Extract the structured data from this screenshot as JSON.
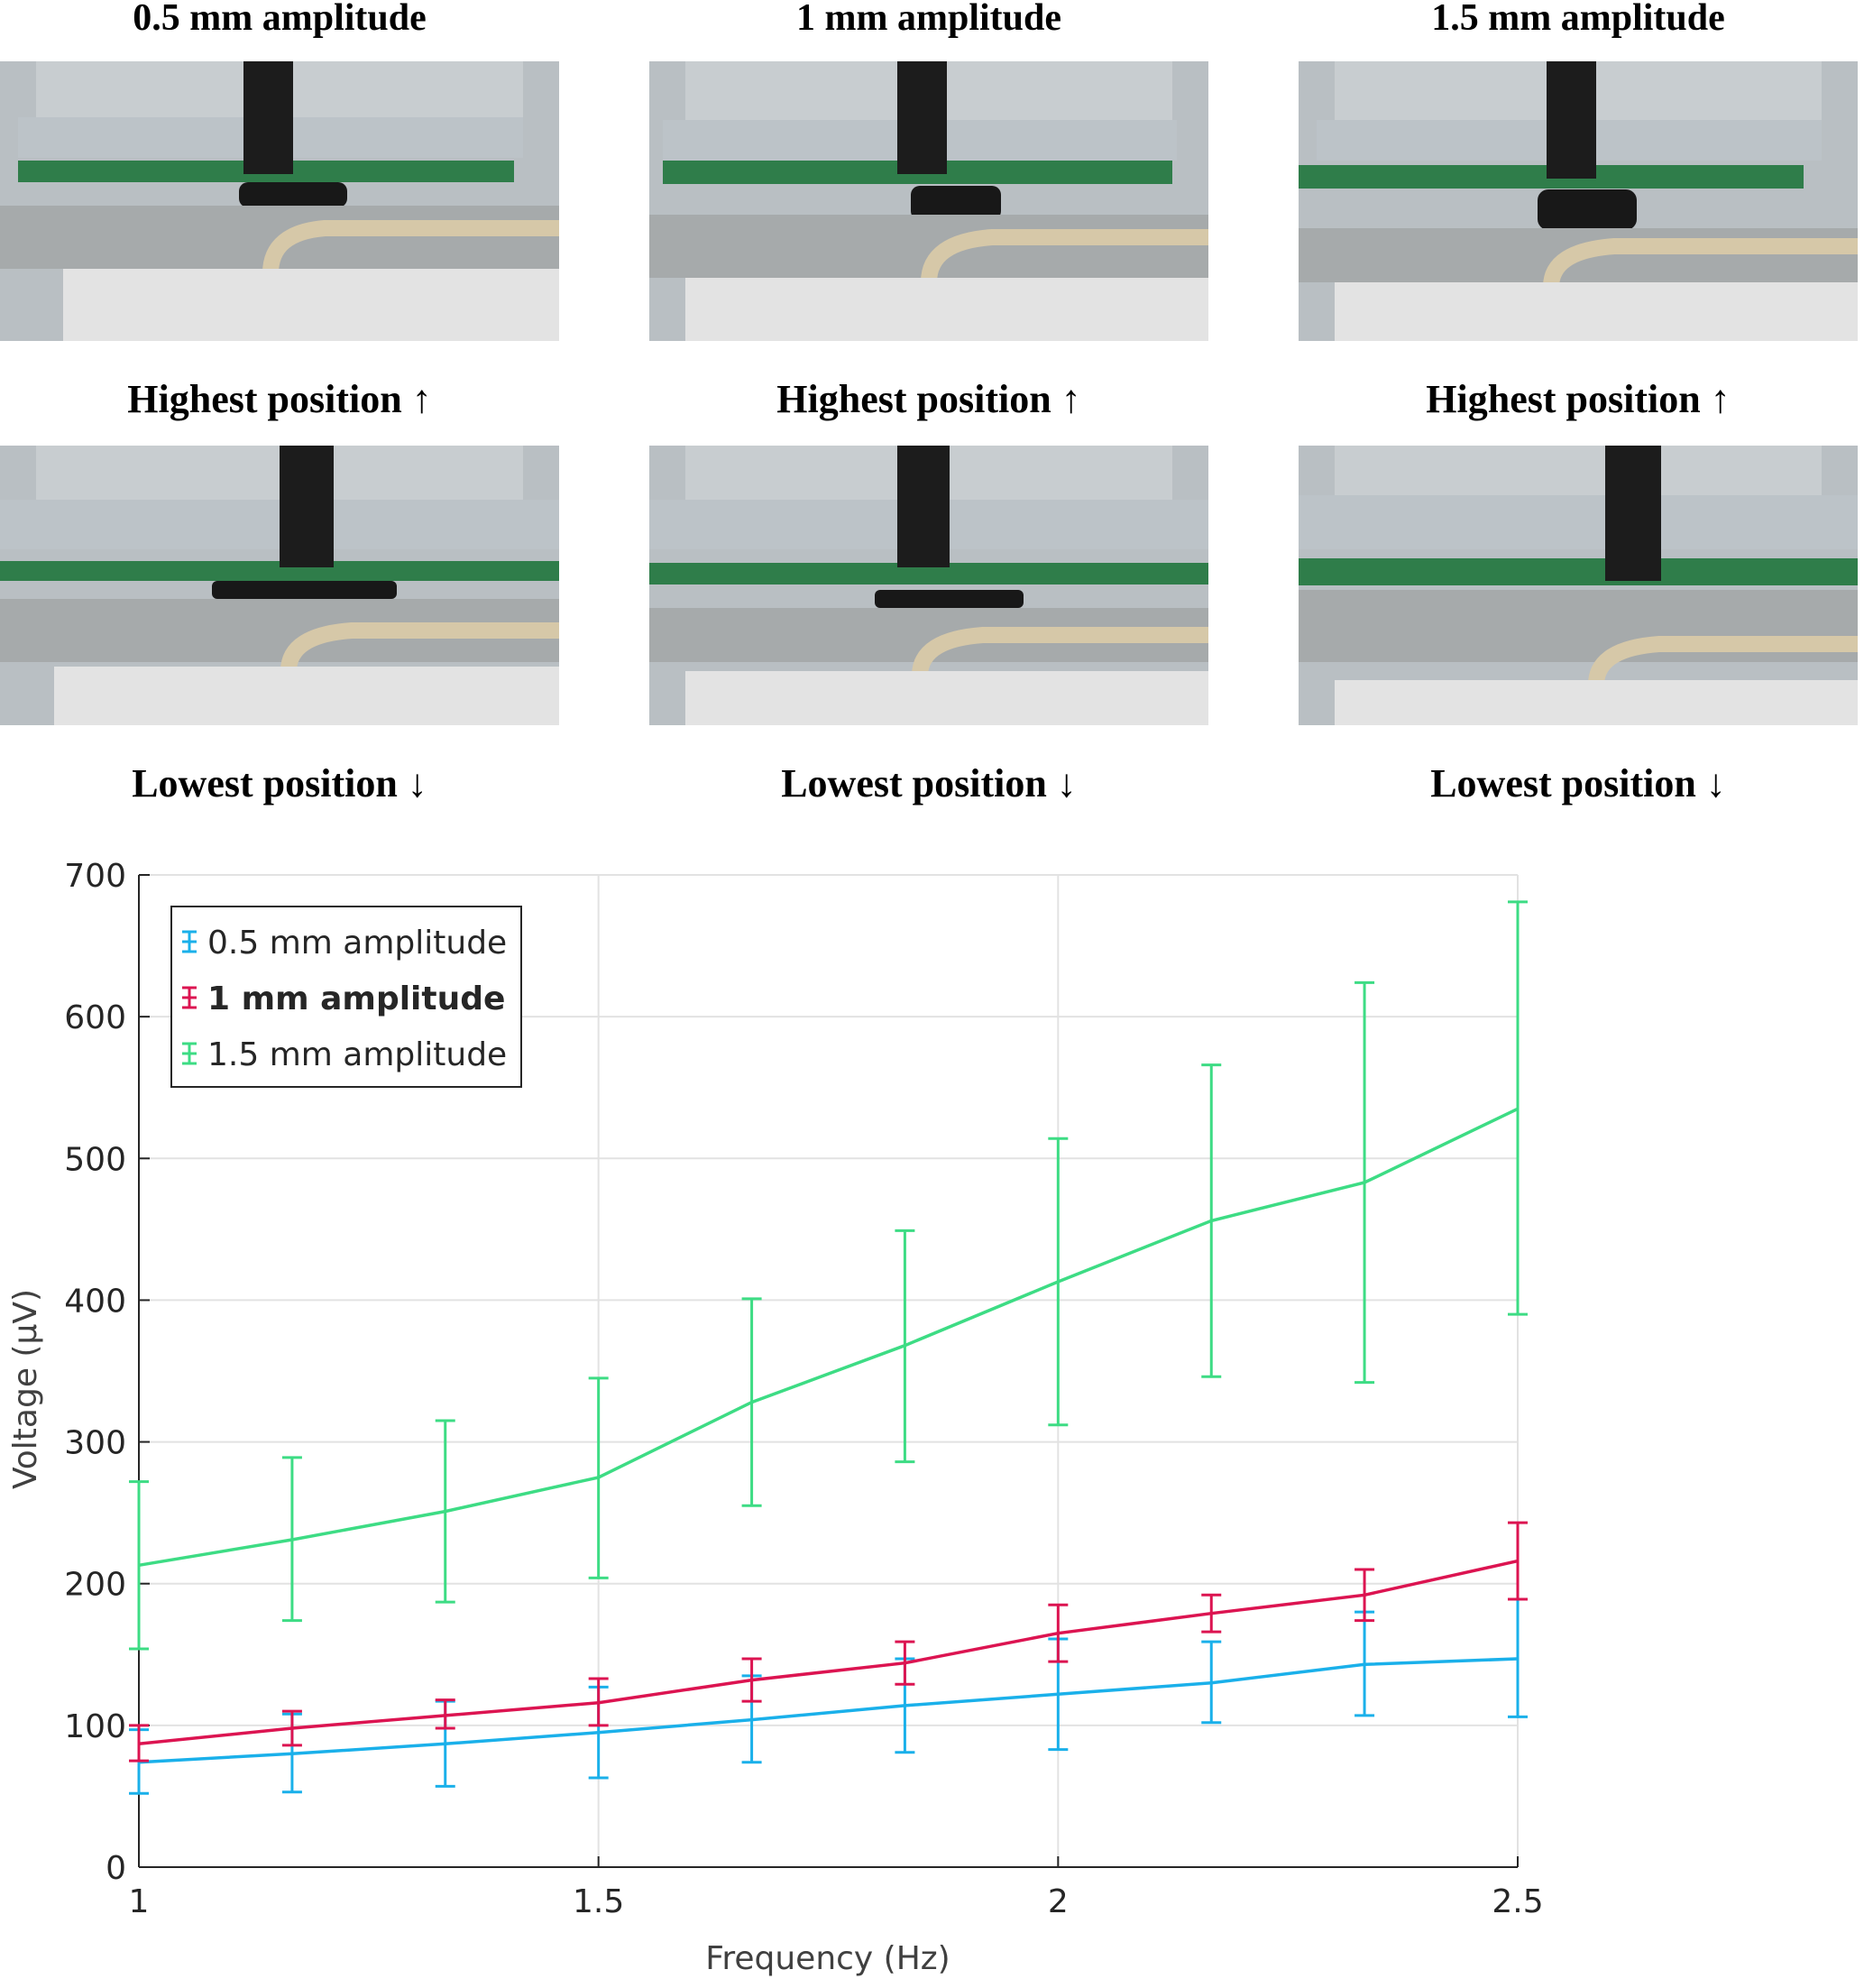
{
  "columns": [
    {
      "title": "0.5 mm amplitude",
      "highest_label": "Highest position ↑",
      "lowest_label": "Lowest position ↓"
    },
    {
      "title": "1 mm amplitude",
      "highest_label": "Highest position ↑",
      "lowest_label": "Lowest position ↓"
    },
    {
      "title": "1.5 mm amplitude",
      "highest_label": "Highest position ↑",
      "lowest_label": "Lowest position ↓"
    }
  ],
  "chart_data": {
    "type": "line",
    "title": "",
    "xlabel": "Frequency (Hz)",
    "ylabel": "Voltage (µV)",
    "xlim": [
      1,
      2.5
    ],
    "ylim": [
      0,
      700
    ],
    "x_ticks": [
      "1",
      "1.5",
      "2",
      "2.5"
    ],
    "y_ticks": [
      "0",
      "100",
      "200",
      "300",
      "400",
      "500",
      "600",
      "700"
    ],
    "grid": true,
    "legend_position": "top-left",
    "x": [
      1,
      1.1667,
      1.3333,
      1.5,
      1.6667,
      1.8333,
      2,
      2.1667,
      2.3333,
      2.5
    ],
    "series": [
      {
        "name": "0.5 mm amplitude",
        "color": "#1ab0ea",
        "legend_bold": false,
        "values": [
          74,
          80,
          87,
          95,
          104,
          114,
          122,
          130,
          143,
          147
        ],
        "err_low": [
          52,
          53,
          57,
          63,
          74,
          81,
          83,
          102,
          107,
          106
        ],
        "err_high": [
          97,
          108,
          117,
          127,
          135,
          147,
          161,
          159,
          180,
          189
        ]
      },
      {
        "name": "1 mm amplitude",
        "color": "#dc1451",
        "legend_bold": true,
        "values": [
          87,
          98,
          107,
          116,
          132,
          144,
          165,
          179,
          192,
          216
        ],
        "err_low": [
          75,
          86,
          98,
          100,
          117,
          129,
          145,
          166,
          174,
          189
        ],
        "err_high": [
          100,
          110,
          118,
          133,
          147,
          159,
          185,
          192,
          210,
          243
        ]
      },
      {
        "name": "1.5 mm amplitude",
        "color": "#3ddc84",
        "legend_bold": false,
        "values": [
          213,
          231,
          251,
          275,
          328,
          368,
          413,
          456,
          483,
          535
        ],
        "err_low": [
          154,
          174,
          187,
          204,
          255,
          286,
          312,
          346,
          342,
          390
        ],
        "err_high": [
          272,
          289,
          315,
          345,
          401,
          449,
          514,
          566,
          624,
          681
        ]
      }
    ]
  }
}
